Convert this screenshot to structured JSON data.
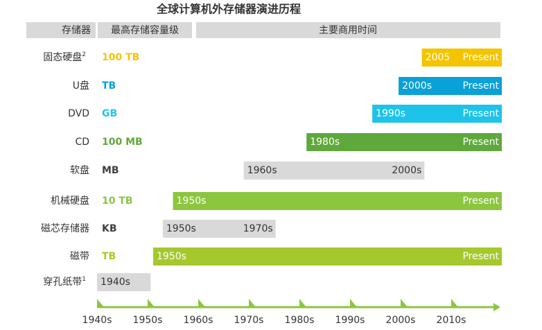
{
  "chart_data": {
    "type": "timeline",
    "title": "全球计算机外存储器演进历程",
    "headers": [
      "存储器",
      "最高存储容量级",
      "主要商用时间"
    ],
    "xlim": [
      1940,
      2020
    ],
    "xticks": [
      {
        "value": 1940,
        "label": "1940s"
      },
      {
        "value": 1950,
        "label": "1950s"
      },
      {
        "value": 1960,
        "label": "1960s"
      },
      {
        "value": 1970,
        "label": "1970s"
      },
      {
        "value": 1980,
        "label": "1980s"
      },
      {
        "value": 1990,
        "label": "1990s"
      },
      {
        "value": 2000,
        "label": "2000s"
      },
      {
        "value": 2010,
        "label": "2010s"
      }
    ],
    "axis_color": "#8cc63f",
    "rows": [
      {
        "name": "固态硬盘",
        "note": "2",
        "capacity": "100 TB",
        "capacity_color": "#f5c400",
        "start": 2004.2,
        "end": 2020,
        "start_label": "2005",
        "end_label": "Present",
        "color": "#f5c400",
        "label_color": "#ffffff"
      },
      {
        "name": "U盘",
        "capacity": "TB",
        "capacity_color": "#0aa0d8",
        "start": 1999.6,
        "end": 2020,
        "start_label": "2000s",
        "end_label": "Present",
        "color": "#0aa0d8",
        "label_color": "#ffffff"
      },
      {
        "name": "DVD",
        "capacity": "GB",
        "capacity_color": "#1ec3ea",
        "start": 1994.4,
        "end": 2020,
        "start_label": "1990s",
        "end_label": "Present",
        "color": "#1ec3ea",
        "label_color": "#ffffff"
      },
      {
        "name": "CD",
        "capacity": "100 MB",
        "capacity_color": "#5fa83c",
        "start": 1981.4,
        "end": 2020,
        "start_label": "1980s",
        "end_label": "Present",
        "color": "#5fa83c",
        "label_color": "#ffffff"
      },
      {
        "name": "软盘",
        "capacity": "MB",
        "capacity_color": "#404040",
        "start": 1969,
        "end": 2004.7,
        "start_label": "1960s",
        "end_label": "2000s",
        "color": "#d9d9d9",
        "label_color": "#333333"
      },
      {
        "name": "机械硬盘",
        "capacity": "10 TB",
        "capacity_color": "#8cc63f",
        "start": 1955,
        "end": 2020,
        "start_label": "1950s",
        "end_label": "Present",
        "color": "#8cc63f",
        "label_color": "#ffffff"
      },
      {
        "name": "磁芯存储器",
        "capacity": "KB",
        "capacity_color": "#404040",
        "start": 1953,
        "end": 1975.3,
        "start_label": "1950s",
        "end_label": "1970s",
        "color": "#d9d9d9",
        "label_color": "#333333"
      },
      {
        "name": "磁带",
        "capacity": "TB",
        "capacity_color": "#a5c82d",
        "start": 1951.1,
        "end": 2020,
        "start_label": "1950s",
        "end_label": "Present",
        "color": "#a5c82d",
        "label_color": "#ffffff"
      },
      {
        "name": "穿孔纸带",
        "note": "1",
        "start": 1940,
        "end": 1950.6,
        "start_label": "1940s",
        "color": "#d9d9d9",
        "label_color": "#333333"
      }
    ]
  }
}
